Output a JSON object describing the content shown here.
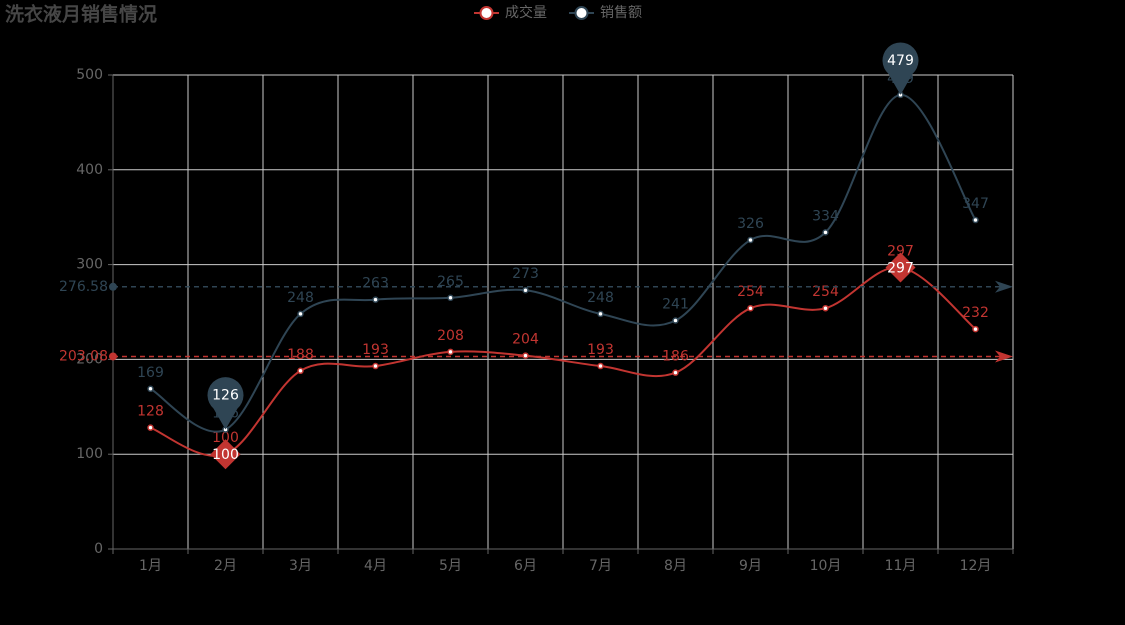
{
  "chart_data": {
    "type": "line",
    "title": "洗衣液月销售情况",
    "categories": [
      "1月",
      "2月",
      "3月",
      "4月",
      "5月",
      "6月",
      "7月",
      "8月",
      "9月",
      "10月",
      "11月",
      "12月"
    ],
    "series": [
      {
        "name": "成交量",
        "color": "#c23531",
        "values": [
          128,
          100,
          188,
          193,
          208,
          204,
          193,
          186,
          254,
          254,
          297,
          232
        ],
        "average": 203.08,
        "mark_points": [
          "max",
          "min"
        ],
        "marker_shape": "diamond"
      },
      {
        "name": "销售额",
        "color": "#2f4554",
        "values": [
          169,
          126,
          248,
          263,
          265,
          273,
          248,
          241,
          326,
          334,
          479,
          347
        ],
        "average": 276.58,
        "mark_points": [
          "max",
          "min"
        ],
        "marker_shape": "pin"
      }
    ],
    "ylim": [
      0,
      500
    ],
    "yticks": [
      0,
      100,
      200,
      300,
      400,
      500
    ],
    "grid": true,
    "smooth": true
  }
}
